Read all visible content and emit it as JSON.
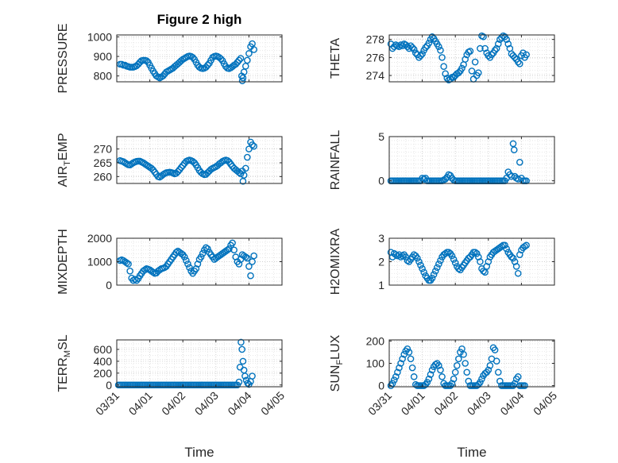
{
  "figure": {
    "title": "Figure 2 high",
    "marker_color": "#0072BD",
    "x_ticks": [
      "03/31",
      "04/01",
      "04/02",
      "04/03",
      "04/04",
      "04/05"
    ],
    "x_label": "Time"
  },
  "chart_data": [
    {
      "type": "scatter",
      "ylabel": "PRESSURE",
      "ylim": [
        770,
        1010
      ],
      "yticks": [
        800,
        900,
        1000
      ],
      "grid": true,
      "x": [
        0.1,
        0.15,
        0.2,
        0.25,
        0.3,
        0.35,
        0.4,
        0.45,
        0.5,
        0.55,
        0.6,
        0.65,
        0.7,
        0.75,
        0.8,
        0.85,
        0.9,
        0.95,
        1.0,
        1.05,
        1.1,
        1.15,
        1.2,
        1.25,
        1.3,
        1.35,
        1.4,
        1.45,
        1.5,
        1.55,
        1.6,
        1.65,
        1.7,
        1.75,
        1.8,
        1.85,
        1.9,
        1.95,
        2.0,
        2.05,
        2.1,
        2.15,
        2.2,
        2.25,
        2.3,
        2.35,
        2.4,
        2.45,
        2.5,
        2.55,
        2.6,
        2.65,
        2.7,
        2.75,
        2.8,
        2.85,
        2.9,
        2.95,
        3.0,
        3.05,
        3.1,
        3.15,
        3.2,
        3.25,
        3.3,
        3.35,
        3.4,
        3.45,
        3.5,
        3.55,
        3.6,
        3.65,
        3.7,
        3.75,
        3.78,
        3.8,
        3.82,
        3.85,
        3.9,
        3.95,
        4.0,
        4.05,
        4.1,
        4.15
      ],
      "y": [
        860,
        860,
        855,
        855,
        850,
        848,
        845,
        845,
        845,
        848,
        852,
        860,
        870,
        878,
        880,
        880,
        878,
        870,
        855,
        840,
        825,
        812,
        800,
        795,
        790,
        795,
        800,
        810,
        820,
        825,
        830,
        835,
        840,
        848,
        855,
        862,
        870,
        878,
        885,
        890,
        895,
        900,
        902,
        900,
        895,
        885,
        870,
        855,
        845,
        840,
        838,
        840,
        845,
        855,
        865,
        880,
        895,
        900,
        902,
        900,
        895,
        888,
        878,
        862,
        848,
        840,
        838,
        842,
        848,
        855,
        860,
        870,
        880,
        890,
        800,
        775,
        790,
        820,
        850,
        880,
        915,
        950,
        965,
        935
      ]
    },
    {
      "type": "scatter",
      "ylabel": "THETA",
      "ylim": [
        273.3,
        278.5
      ],
      "yticks": [
        274,
        276,
        278
      ],
      "grid": true,
      "x": [
        0.05,
        0.1,
        0.15,
        0.2,
        0.25,
        0.3,
        0.35,
        0.4,
        0.45,
        0.5,
        0.55,
        0.6,
        0.65,
        0.7,
        0.75,
        0.8,
        0.85,
        0.9,
        0.95,
        1.0,
        1.05,
        1.1,
        1.15,
        1.2,
        1.25,
        1.3,
        1.35,
        1.4,
        1.45,
        1.5,
        1.55,
        1.6,
        1.65,
        1.7,
        1.75,
        1.8,
        1.85,
        1.9,
        1.95,
        2.0,
        2.05,
        2.1,
        2.15,
        2.2,
        2.25,
        2.3,
        2.35,
        2.4,
        2.45,
        2.5,
        2.55,
        2.6,
        2.65,
        2.7,
        2.75,
        2.8,
        2.85,
        2.9,
        2.95,
        3.0,
        3.05,
        3.1,
        3.15,
        3.2,
        3.25,
        3.3,
        3.35,
        3.4,
        3.45,
        3.5,
        3.55,
        3.6,
        3.65,
        3.7,
        3.75,
        3.8,
        3.85,
        3.9,
        3.95,
        4.0,
        4.05,
        4.1,
        4.15
      ],
      "y": [
        277.5,
        277.0,
        277.2,
        277.4,
        277.3,
        277.2,
        277.4,
        277.3,
        277.5,
        277.4,
        277.2,
        277.0,
        277.3,
        277.1,
        276.9,
        276.5,
        276.3,
        276.0,
        276.2,
        276.4,
        276.8,
        277.1,
        277.3,
        277.6,
        278.0,
        278.3,
        278.1,
        277.8,
        277.5,
        277.2,
        276.8,
        276.0,
        275.0,
        274.2,
        273.7,
        273.5,
        273.6,
        273.8,
        273.8,
        274.0,
        274.2,
        274.3,
        274.5,
        274.8,
        275.2,
        275.8,
        276.3,
        276.6,
        276.7,
        274.5,
        273.6,
        275.5,
        274.0,
        274.3,
        277.0,
        278.4,
        278.3,
        277.0,
        276.5,
        276.2,
        276.0,
        276.3,
        276.5,
        276.8,
        277.0,
        277.5,
        278.0,
        278.2,
        278.4,
        278.3,
        278.0,
        277.5,
        277.0,
        276.4,
        276.2,
        276.0,
        275.8,
        275.5,
        275.3,
        276.2,
        276.5,
        276.0,
        276.3
      ]
    },
    {
      "type": "scatter",
      "ylabel": "AIR_TEMP",
      "ylim": [
        257.5,
        274.5
      ],
      "yticks": [
        260,
        265,
        270
      ],
      "grid": true,
      "x": [
        0.1,
        0.15,
        0.2,
        0.25,
        0.3,
        0.35,
        0.4,
        0.45,
        0.5,
        0.55,
        0.6,
        0.65,
        0.7,
        0.75,
        0.8,
        0.85,
        0.9,
        0.95,
        1.0,
        1.05,
        1.1,
        1.15,
        1.2,
        1.25,
        1.3,
        1.35,
        1.4,
        1.45,
        1.5,
        1.55,
        1.6,
        1.65,
        1.7,
        1.75,
        1.8,
        1.85,
        1.9,
        1.95,
        2.0,
        2.05,
        2.1,
        2.15,
        2.2,
        2.25,
        2.3,
        2.35,
        2.4,
        2.45,
        2.5,
        2.55,
        2.6,
        2.65,
        2.7,
        2.75,
        2.8,
        2.85,
        2.9,
        2.95,
        3.0,
        3.05,
        3.1,
        3.15,
        3.2,
        3.25,
        3.3,
        3.35,
        3.4,
        3.45,
        3.5,
        3.55,
        3.6,
        3.65,
        3.7,
        3.75,
        3.8,
        3.82,
        3.85,
        3.9,
        3.95,
        4.0,
        4.05,
        4.1,
        4.15
      ],
      "y": [
        265.8,
        265.6,
        265.4,
        265.0,
        264.6,
        264.3,
        264.2,
        264.6,
        265.0,
        265.3,
        265.5,
        265.6,
        265.6,
        265.3,
        265.0,
        264.6,
        264.2,
        263.8,
        263.4,
        263.0,
        262.4,
        261.6,
        260.8,
        260.0,
        259.8,
        260.2,
        260.7,
        261.1,
        261.4,
        261.5,
        261.6,
        261.5,
        261.3,
        261.0,
        261.2,
        261.8,
        262.5,
        263.3,
        264.0,
        264.8,
        265.5,
        265.8,
        266.0,
        265.8,
        265.5,
        265.0,
        264.2,
        263.2,
        262.2,
        261.5,
        261.0,
        260.7,
        260.8,
        261.4,
        262.0,
        262.6,
        263.0,
        263.3,
        263.6,
        264.0,
        264.6,
        265.0,
        265.5,
        265.8,
        266.0,
        265.8,
        265.3,
        264.5,
        263.7,
        263.0,
        262.5,
        262.0,
        261.5,
        261.0,
        262.0,
        258.3,
        260.5,
        263.0,
        267.0,
        270.0,
        272.5,
        271.5,
        271.0
      ]
    },
    {
      "type": "scatter",
      "ylabel": "RAINFALL",
      "ylim": [
        -0.3,
        5
      ],
      "yticks": [
        0,
        5
      ],
      "grid": true,
      "x": [
        0.05,
        0.1,
        0.15,
        0.2,
        0.25,
        0.3,
        0.35,
        0.4,
        0.45,
        0.5,
        0.55,
        0.6,
        0.65,
        0.7,
        0.75,
        0.8,
        0.85,
        0.9,
        0.95,
        1.0,
        1.05,
        1.1,
        1.15,
        1.2,
        1.25,
        1.3,
        1.35,
        1.4,
        1.45,
        1.5,
        1.55,
        1.6,
        1.65,
        1.7,
        1.75,
        1.8,
        1.85,
        1.9,
        1.95,
        2.0,
        2.05,
        2.1,
        2.15,
        2.2,
        2.25,
        2.3,
        2.35,
        2.4,
        2.45,
        2.5,
        2.55,
        2.6,
        2.65,
        2.7,
        2.75,
        2.8,
        2.85,
        2.9,
        2.95,
        3.0,
        3.05,
        3.1,
        3.15,
        3.2,
        3.25,
        3.3,
        3.35,
        3.4,
        3.45,
        3.5,
        3.55,
        3.6,
        3.65,
        3.7,
        3.75,
        3.78,
        3.8,
        3.85,
        3.9,
        3.95,
        4.0,
        4.05,
        4.1,
        4.15
      ],
      "y": [
        0,
        0,
        0,
        0,
        0,
        0,
        0,
        0,
        0,
        0,
        0,
        0,
        0,
        0,
        0,
        0,
        0,
        0,
        0,
        0.3,
        0.2,
        0.3,
        0,
        0,
        0,
        0,
        0,
        0,
        0,
        0,
        0,
        0,
        0.1,
        0.2,
        0.4,
        0.7,
        0.6,
        0.3,
        0.1,
        0,
        0,
        0,
        0,
        0,
        0,
        0,
        0,
        0,
        0,
        0,
        0,
        0,
        0,
        0,
        0,
        0,
        0,
        0,
        0,
        0,
        0,
        0,
        0,
        0,
        0,
        0,
        0,
        0,
        0,
        0,
        0.3,
        1.0,
        0.7,
        0.5,
        4.2,
        3.5,
        0.5,
        0.3,
        0.2,
        2.1,
        0.3,
        0,
        0,
        0
      ]
    },
    {
      "type": "scatter",
      "ylabel": "MIXDEPTH",
      "ylim": [
        0,
        2000
      ],
      "yticks": [
        0,
        1000,
        2000
      ],
      "grid": true,
      "x": [
        0.1,
        0.15,
        0.2,
        0.25,
        0.3,
        0.35,
        0.4,
        0.45,
        0.5,
        0.55,
        0.6,
        0.65,
        0.7,
        0.75,
        0.8,
        0.85,
        0.9,
        0.95,
        1.0,
        1.05,
        1.1,
        1.15,
        1.2,
        1.25,
        1.3,
        1.35,
        1.4,
        1.45,
        1.5,
        1.55,
        1.6,
        1.65,
        1.7,
        1.75,
        1.8,
        1.85,
        1.9,
        1.95,
        2.0,
        2.05,
        2.1,
        2.15,
        2.2,
        2.25,
        2.3,
        2.35,
        2.4,
        2.45,
        2.5,
        2.55,
        2.6,
        2.65,
        2.7,
        2.75,
        2.8,
        2.85,
        2.9,
        2.95,
        3.0,
        3.05,
        3.1,
        3.15,
        3.2,
        3.25,
        3.3,
        3.35,
        3.4,
        3.45,
        3.5,
        3.55,
        3.6,
        3.65,
        3.7,
        3.75,
        3.8,
        3.85,
        3.9,
        3.95,
        4.0,
        4.05,
        4.1,
        4.15
      ],
      "y": [
        1050,
        1080,
        1050,
        1000,
        950,
        900,
        600,
        300,
        200,
        250,
        200,
        280,
        400,
        500,
        600,
        650,
        700,
        680,
        650,
        600,
        550,
        500,
        520,
        600,
        650,
        700,
        720,
        750,
        800,
        900,
        1000,
        1100,
        1200,
        1300,
        1400,
        1450,
        1400,
        1350,
        1300,
        1200,
        1050,
        900,
        750,
        600,
        500,
        600,
        700,
        900,
        1100,
        1200,
        1350,
        1500,
        1600,
        1550,
        1400,
        1300,
        1200,
        1100,
        1150,
        1200,
        1250,
        1300,
        1350,
        1400,
        1450,
        1500,
        1550,
        1700,
        1800,
        1500,
        1200,
        1000,
        900,
        1100,
        1300,
        1250,
        1200,
        1150,
        800,
        400,
        1000,
        1250
      ]
    },
    {
      "type": "scatter",
      "ylabel": "H2OMIXRA",
      "ylim": [
        1,
        3
      ],
      "yticks": [
        1,
        2,
        3
      ],
      "grid": true,
      "x": [
        0.05,
        0.1,
        0.15,
        0.2,
        0.25,
        0.3,
        0.35,
        0.4,
        0.45,
        0.5,
        0.55,
        0.6,
        0.65,
        0.7,
        0.75,
        0.8,
        0.85,
        0.9,
        0.95,
        1.0,
        1.05,
        1.1,
        1.15,
        1.2,
        1.25,
        1.3,
        1.35,
        1.4,
        1.45,
        1.5,
        1.55,
        1.6,
        1.65,
        1.7,
        1.75,
        1.8,
        1.85,
        1.9,
        1.95,
        2.0,
        2.05,
        2.1,
        2.15,
        2.2,
        2.25,
        2.3,
        2.35,
        2.4,
        2.45,
        2.5,
        2.55,
        2.6,
        2.65,
        2.7,
        2.75,
        2.8,
        2.85,
        2.9,
        2.95,
        3.0,
        3.05,
        3.1,
        3.15,
        3.2,
        3.25,
        3.3,
        3.35,
        3.4,
        3.45,
        3.5,
        3.55,
        3.6,
        3.65,
        3.7,
        3.75,
        3.8,
        3.85,
        3.9,
        3.95,
        4.0,
        4.05,
        4.1,
        4.15
      ],
      "y": [
        2.4,
        2.2,
        2.35,
        2.3,
        2.25,
        2.3,
        2.2,
        2.25,
        2.3,
        2.2,
        2.05,
        2.0,
        2.1,
        2.2,
        2.3,
        2.25,
        2.15,
        2.0,
        1.85,
        1.7,
        1.55,
        1.4,
        1.3,
        1.2,
        1.2,
        1.3,
        1.45,
        1.6,
        1.75,
        1.9,
        2.05,
        2.2,
        2.3,
        2.35,
        2.4,
        2.4,
        2.35,
        2.25,
        2.1,
        1.95,
        1.8,
        1.7,
        1.65,
        1.75,
        1.85,
        1.95,
        2.05,
        2.15,
        2.2,
        2.3,
        2.4,
        2.4,
        2.35,
        2.2,
        2.0,
        1.7,
        1.6,
        1.55,
        1.8,
        2.0,
        2.2,
        2.3,
        2.4,
        2.45,
        2.5,
        2.55,
        2.6,
        2.65,
        2.7,
        2.7,
        2.55,
        2.4,
        2.3,
        2.2,
        2.15,
        2.0,
        1.8,
        1.5,
        2.3,
        2.5,
        2.6,
        2.65,
        2.7
      ]
    },
    {
      "type": "scatter",
      "ylabel": "TERR_MSL",
      "ylim": [
        -30,
        760
      ],
      "yticks": [
        0,
        200,
        400,
        600
      ],
      "grid": true,
      "x": [
        0.05,
        0.1,
        0.15,
        0.2,
        0.25,
        0.3,
        0.35,
        0.4,
        0.45,
        0.5,
        0.55,
        0.6,
        0.65,
        0.7,
        0.75,
        0.8,
        0.85,
        0.9,
        0.95,
        1.0,
        1.05,
        1.1,
        1.15,
        1.2,
        1.25,
        1.3,
        1.35,
        1.4,
        1.45,
        1.5,
        1.55,
        1.6,
        1.65,
        1.7,
        1.75,
        1.8,
        1.85,
        1.9,
        1.95,
        2.0,
        2.05,
        2.1,
        2.15,
        2.2,
        2.25,
        2.3,
        2.35,
        2.4,
        2.45,
        2.5,
        2.55,
        2.6,
        2.65,
        2.7,
        2.75,
        2.8,
        2.85,
        2.9,
        2.95,
        3.0,
        3.05,
        3.1,
        3.15,
        3.2,
        3.25,
        3.3,
        3.35,
        3.4,
        3.45,
        3.5,
        3.55,
        3.6,
        3.65,
        3.7,
        3.73,
        3.76,
        3.79,
        3.82,
        3.85,
        3.88,
        3.92,
        3.96,
        4.0,
        4.05,
        4.1
      ],
      "y": [
        0,
        0,
        0,
        0,
        0,
        0,
        0,
        0,
        0,
        0,
        0,
        0,
        0,
        0,
        0,
        0,
        0,
        0,
        0,
        0,
        0,
        0,
        0,
        0,
        0,
        0,
        0,
        0,
        0,
        0,
        0,
        0,
        0,
        0,
        0,
        0,
        0,
        0,
        0,
        0,
        0,
        0,
        0,
        0,
        0,
        0,
        0,
        0,
        0,
        0,
        0,
        0,
        0,
        0,
        0,
        0,
        0,
        0,
        0,
        0,
        0,
        0,
        0,
        0,
        0,
        0,
        0,
        0,
        0,
        0,
        0,
        0,
        0,
        50,
        300,
        720,
        600,
        400,
        250,
        150,
        80,
        30,
        10,
        60,
        150
      ]
    },
    {
      "type": "scatter",
      "ylabel": "SUN_FLUX",
      "ylim": [
        -5,
        205
      ],
      "yticks": [
        0,
        100,
        200
      ],
      "grid": true,
      "x": [
        0.05,
        0.1,
        0.15,
        0.2,
        0.25,
        0.3,
        0.35,
        0.4,
        0.45,
        0.5,
        0.55,
        0.6,
        0.65,
        0.7,
        0.75,
        0.8,
        0.85,
        0.9,
        0.95,
        1.0,
        1.05,
        1.1,
        1.15,
        1.2,
        1.25,
        1.3,
        1.35,
        1.4,
        1.45,
        1.5,
        1.55,
        1.6,
        1.65,
        1.7,
        1.75,
        1.8,
        1.85,
        1.9,
        1.95,
        2.0,
        2.05,
        2.1,
        2.15,
        2.2,
        2.25,
        2.3,
        2.35,
        2.4,
        2.45,
        2.5,
        2.55,
        2.6,
        2.65,
        2.7,
        2.75,
        2.8,
        2.85,
        2.9,
        2.95,
        3.0,
        3.05,
        3.1,
        3.15,
        3.2,
        3.25,
        3.3,
        3.35,
        3.4,
        3.45,
        3.5,
        3.55,
        3.6,
        3.65,
        3.7,
        3.75,
        3.8,
        3.85,
        3.9,
        3.95,
        4.0,
        4.05,
        4.1
      ],
      "y": [
        0,
        10,
        25,
        40,
        60,
        80,
        100,
        120,
        140,
        155,
        165,
        150,
        120,
        80,
        40,
        5,
        0,
        0,
        0,
        0,
        0,
        5,
        15,
        30,
        50,
        70,
        85,
        95,
        100,
        90,
        70,
        40,
        10,
        0,
        0,
        0,
        0,
        10,
        30,
        60,
        90,
        120,
        150,
        165,
        140,
        100,
        60,
        20,
        0,
        0,
        0,
        0,
        0,
        5,
        15,
        30,
        45,
        55,
        60,
        70,
        90,
        120,
        170,
        160,
        110,
        60,
        20,
        0,
        0,
        0,
        0,
        0,
        0,
        0,
        0,
        10,
        30,
        40,
        0,
        0,
        0,
        0
      ]
    }
  ]
}
